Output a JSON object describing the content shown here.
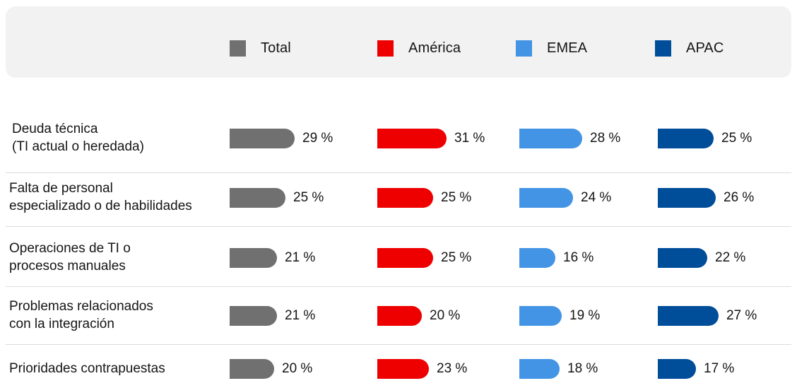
{
  "chart_data": {
    "type": "bar",
    "orientation": "horizontal",
    "legend": "top",
    "series": [
      {
        "name": "Total",
        "color": "#707070",
        "values": [
          29,
          25,
          21,
          21,
          20
        ],
        "labels": [
          "29 %",
          "25 %",
          "21 %",
          "21 %",
          "20 %"
        ]
      },
      {
        "name": "América",
        "color": "#ee0000",
        "values": [
          31,
          25,
          25,
          20,
          23
        ],
        "labels": [
          "31 %",
          "25 %",
          "25 %",
          "20 %",
          "23 %"
        ]
      },
      {
        "name": "EMEA",
        "color": "#4394e5",
        "values": [
          28,
          24,
          16,
          19,
          18
        ],
        "labels": [
          "28 %",
          "24 %",
          "16 %",
          "19 %",
          "18 %"
        ]
      },
      {
        "name": "APAC",
        "color": "#004d99",
        "values": [
          25,
          26,
          22,
          27,
          17
        ],
        "labels": [
          "25 %",
          "26 %",
          "22 %",
          "27 %",
          "17 %"
        ]
      }
    ],
    "categories": [
      [
        "Deuda técnica",
        "(TI actual o heredada)"
      ],
      [
        "Falta de personal",
        "especializado o de habilidades"
      ],
      [
        "Operaciones de TI o",
        "procesos manuales"
      ],
      [
        "Problemas relacionados",
        "con la integración"
      ],
      [
        "Prioridades contrapuestas"
      ]
    ]
  }
}
